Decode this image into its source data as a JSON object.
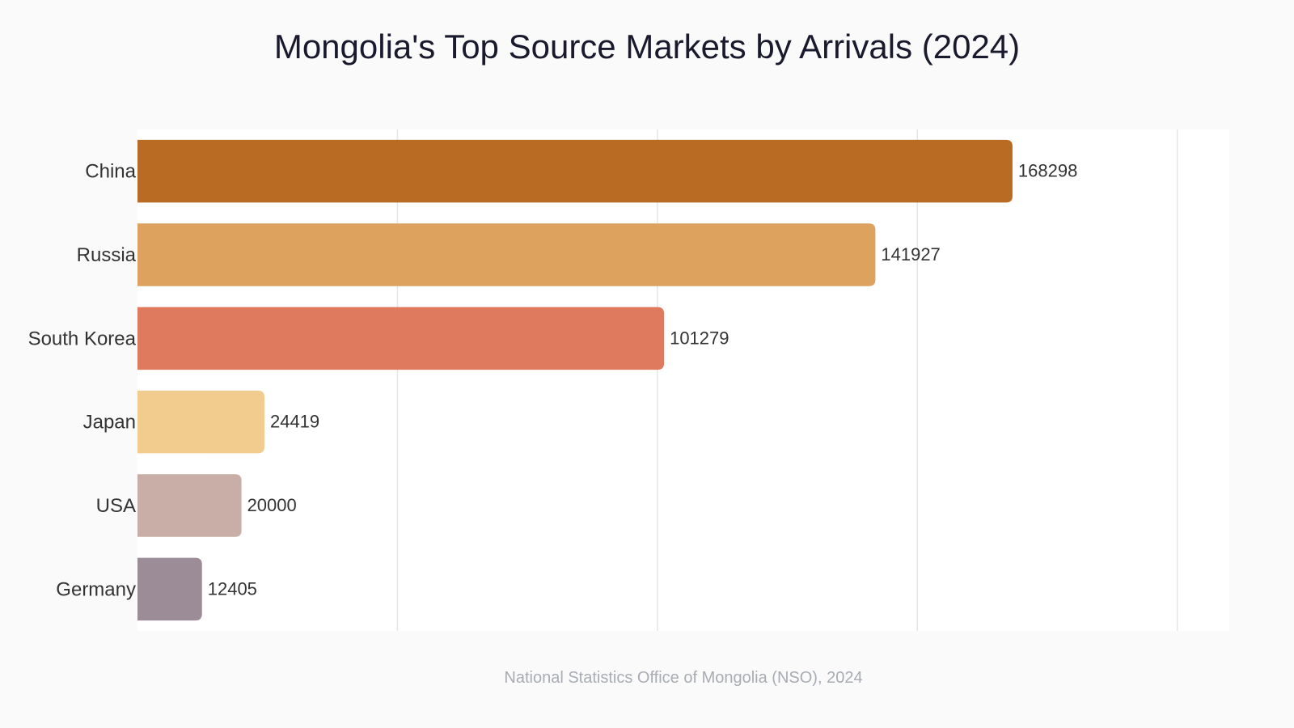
{
  "chart_data": {
    "type": "bar",
    "orientation": "horizontal",
    "title": "Mongolia's Top Source Markets by Arrivals (2024)",
    "xlabel": "",
    "ylabel": "",
    "categories": [
      "China",
      "Russia",
      "South Korea",
      "Japan",
      "USA",
      "Germany"
    ],
    "values": [
      168298,
      141927,
      101279,
      24419,
      20000,
      12405
    ],
    "xlim": [
      0,
      210000
    ],
    "grid": true,
    "legend": "none",
    "colors": [
      "#b96b24",
      "#dca25e",
      "#e07a5f",
      "#f2cb8f",
      "#c9aea7",
      "#9c8c98"
    ],
    "source": "National Statistics Office of Mongolia (NSO), 2024"
  }
}
